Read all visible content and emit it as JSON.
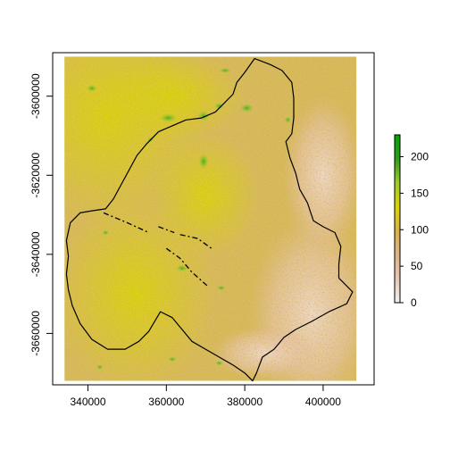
{
  "chart_data": {
    "type": "heatmap",
    "title": "",
    "xlabel": "",
    "ylabel": "",
    "xlim": [
      331000,
      413000
    ],
    "ylim": [
      -3673000,
      -3649000
    ],
    "xlim_note": "",
    "x_ticks": [
      340000,
      360000,
      380000,
      400000
    ],
    "x_tick_labels": [
      "340000",
      "360000",
      "380000",
      "400000"
    ],
    "y_ticks": [
      -3600000,
      -3620000,
      -3640000,
      -3660000
    ],
    "y_tick_labels": [
      "-3600000",
      "-3620000",
      "-3640000",
      "-3660000"
    ],
    "raster_extent": {
      "xmin": 334000,
      "xmax": 408500,
      "ymin": -3672000,
      "ymax": -3590000
    },
    "y_range": [
      -3673000,
      -3589000
    ],
    "legend": {
      "placement": "right",
      "min": 0,
      "max": 230,
      "ticks": [
        0,
        50,
        100,
        150,
        200
      ],
      "tick_labels": [
        "0",
        "50",
        "100",
        "150",
        "200"
      ],
      "colors": [
        "#f2f2f2",
        "#e6c8b4",
        "#dfb38a",
        "#d8b24a",
        "#dcd400",
        "#9ccd2a",
        "#2f9e1c",
        "#00a600"
      ]
    },
    "boundary": {
      "outline_color": "#000000",
      "vertices": [
        [
          382500,
          -3590500
        ],
        [
          386500,
          -3592000
        ],
        [
          389500,
          -3593500
        ],
        [
          392000,
          -3596500
        ],
        [
          392500,
          -3600500
        ],
        [
          392500,
          -3605500
        ],
        [
          392000,
          -3609500
        ],
        [
          390500,
          -3611500
        ],
        [
          391500,
          -3615500
        ],
        [
          393000,
          -3619500
        ],
        [
          394000,
          -3623500
        ],
        [
          396000,
          -3627000
        ],
        [
          397500,
          -3631500
        ],
        [
          400000,
          -3633000
        ],
        [
          403000,
          -3634500
        ],
        [
          404500,
          -3638000
        ],
        [
          404000,
          -3642500
        ],
        [
          404000,
          -3646000
        ],
        [
          407500,
          -3649500
        ],
        [
          406000,
          -3652500
        ],
        [
          401500,
          -3654500
        ],
        [
          397000,
          -3657000
        ],
        [
          393000,
          -3659000
        ],
        [
          390000,
          -3661000
        ],
        [
          387500,
          -3664000
        ],
        [
          384500,
          -3666000
        ],
        [
          383000,
          -3670000
        ],
        [
          382000,
          -3672000
        ],
        [
          380000,
          -3670000
        ],
        [
          377000,
          -3668000
        ],
        [
          373500,
          -3666000
        ],
        [
          370000,
          -3664000
        ],
        [
          366500,
          -3662000
        ],
        [
          364000,
          -3659000
        ],
        [
          361500,
          -3656000
        ],
        [
          358500,
          -3654500
        ],
        [
          355500,
          -3659500
        ],
        [
          353000,
          -3662000
        ],
        [
          349500,
          -3664000
        ],
        [
          345000,
          -3664000
        ],
        [
          341000,
          -3661500
        ],
        [
          338000,
          -3657500
        ],
        [
          336000,
          -3653000
        ],
        [
          335000,
          -3649000
        ],
        [
          334500,
          -3645000
        ],
        [
          335000,
          -3640500
        ],
        [
          334500,
          -3636500
        ],
        [
          335500,
          -3632000
        ],
        [
          338000,
          -3629500
        ],
        [
          341000,
          -3629000
        ],
        [
          344500,
          -3628500
        ],
        [
          346500,
          -3626000
        ],
        [
          349500,
          -3620500
        ],
        [
          352500,
          -3615000
        ],
        [
          355000,
          -3612000
        ],
        [
          358000,
          -3609000
        ],
        [
          361500,
          -3607500
        ],
        [
          365000,
          -3606000
        ],
        [
          369000,
          -3605500
        ],
        [
          372500,
          -3604000
        ],
        [
          375000,
          -3601500
        ],
        [
          377000,
          -3599500
        ],
        [
          378000,
          -3596500
        ],
        [
          380000,
          -3594000
        ],
        [
          382500,
          -3590500
        ]
      ]
    },
    "interior_lines": [
      {
        "name": "line-a",
        "points": [
          [
            344000,
            -3629500
          ],
          [
            350000,
            -3632000
          ],
          [
            355500,
            -3634500
          ]
        ]
      },
      {
        "name": "line-b",
        "points": [
          [
            358000,
            -3633000
          ],
          [
            362000,
            -3634500
          ]
        ]
      },
      {
        "name": "line-c",
        "points": [
          [
            363500,
            -3635000
          ],
          [
            368000,
            -3636000
          ],
          [
            371500,
            -3638500
          ]
        ]
      },
      {
        "name": "line-d",
        "points": [
          [
            360000,
            -3638500
          ],
          [
            363500,
            -3641000
          ],
          [
            366500,
            -3644500
          ],
          [
            370500,
            -3648000
          ]
        ]
      }
    ]
  }
}
